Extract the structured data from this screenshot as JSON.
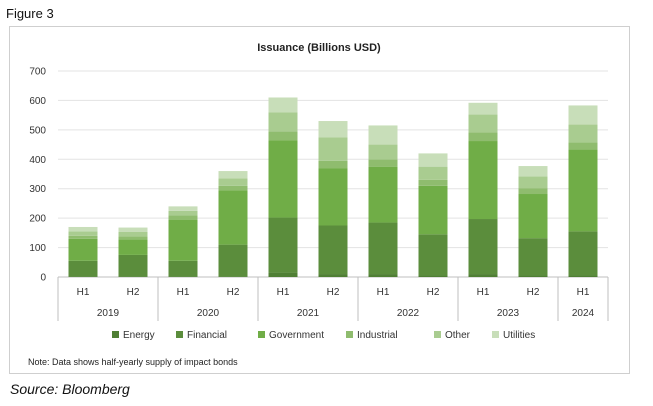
{
  "figure_label": "Figure 3",
  "source": "Source: Bloomberg",
  "note": "Note: Data shows half-yearly supply of impact bonds",
  "chart_data": {
    "type": "bar",
    "stacked": true,
    "title": "Issuance (Billions USD)",
    "xlabel": "",
    "ylabel": "",
    "ylim": [
      0,
      700
    ],
    "yticks": [
      0,
      100,
      200,
      300,
      400,
      500,
      600,
      700
    ],
    "grid": true,
    "legend_position": "bottom",
    "categories": [
      "H1",
      "H2",
      "H1",
      "H2",
      "H1",
      "H2",
      "H1",
      "H2",
      "H1",
      "H2",
      "H1"
    ],
    "groups": [
      {
        "label": "2019",
        "count": 2
      },
      {
        "label": "2020",
        "count": 2
      },
      {
        "label": "2021",
        "count": 2
      },
      {
        "label": "2022",
        "count": 2
      },
      {
        "label": "2023",
        "count": 2
      },
      {
        "label": "2024",
        "count": 1
      }
    ],
    "series": [
      {
        "name": "Energy",
        "color": "#4f7f34",
        "values": [
          2,
          2,
          2,
          2,
          15,
          10,
          10,
          5,
          10,
          5,
          5
        ]
      },
      {
        "name": "Financial",
        "color": "#5b8d3c",
        "values": [
          53,
          73,
          53,
          108,
          187,
          165,
          175,
          140,
          187,
          127,
          150
        ]
      },
      {
        "name": "Government",
        "color": "#70ad47",
        "values": [
          75,
          53,
          140,
          185,
          263,
          195,
          190,
          165,
          265,
          150,
          278
        ]
      },
      {
        "name": "Industrial",
        "color": "#8fbc6e",
        "values": [
          10,
          10,
          15,
          15,
          30,
          25,
          25,
          20,
          30,
          20,
          25
        ]
      },
      {
        "name": "Other",
        "color": "#a9cc90",
        "values": [
          15,
          15,
          15,
          25,
          65,
          80,
          50,
          45,
          60,
          40,
          60
        ]
      },
      {
        "name": "Utilities",
        "color": "#c8deb9",
        "values": [
          15,
          15,
          15,
          25,
          50,
          55,
          65,
          45,
          40,
          35,
          65
        ]
      }
    ]
  }
}
